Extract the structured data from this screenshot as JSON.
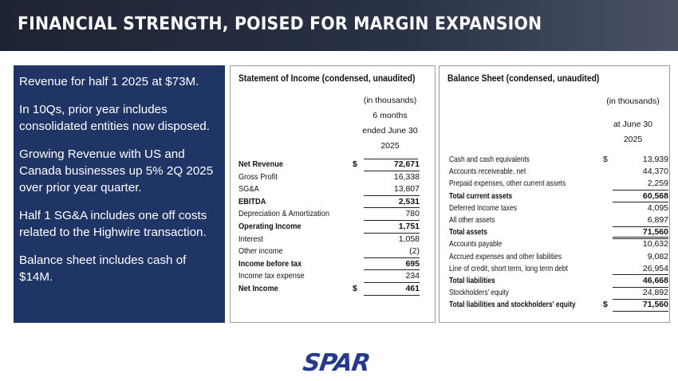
{
  "header": {
    "title": "FINANCIAL STRENGTH, POISED FOR MARGIN EXPANSION"
  },
  "left_panel": {
    "bullets": [
      "Revenue for half 1 2025 at $73M.",
      "In 10Qs, prior year includes consolidated entities now disposed.",
      "Growing Revenue with US and Canada businesses up 5% 2Q 2025 over prior year quarter.",
      "Half 1 SG&A includes one off costs related to the Highwire transaction.",
      "Balance sheet includes cash of $14M."
    ]
  },
  "income": {
    "title": "Statement of Income (condensed, unaudited)",
    "col_header": [
      "(in thousands)",
      "6 months",
      "ended June 30",
      "2025"
    ],
    "rows": [
      {
        "label": "Net Revenue",
        "cur": "$",
        "value": "72,671",
        "bold": true
      },
      {
        "label": "Gross Profit",
        "cur": "",
        "value": "16,338",
        "bold": false
      },
      {
        "label": "SG&A",
        "cur": "",
        "value": "13,807",
        "bold": false
      },
      {
        "label": "EBITDA",
        "cur": "",
        "value": "2,531",
        "bold": true
      },
      {
        "label": "Depreciation & Amortization",
        "cur": "",
        "value": "780",
        "bold": false
      },
      {
        "label": "Operating Income",
        "cur": "",
        "value": "1,751",
        "bold": true
      },
      {
        "label": "Interest",
        "cur": "",
        "value": "1,058",
        "bold": false
      },
      {
        "label": "Other income",
        "cur": "",
        "value": "(2)",
        "bold": false
      },
      {
        "label": "Income before tax",
        "cur": "",
        "value": "695",
        "bold": true
      },
      {
        "label": "Income tax expense",
        "cur": "",
        "value": "234",
        "bold": false
      },
      {
        "label": "Net Income",
        "cur": "$",
        "value": "461",
        "bold": true
      }
    ]
  },
  "balance": {
    "title": "Balance Sheet (condensed, unaudited)",
    "units": "(in thousands)",
    "col_header": [
      "at June 30",
      "2025"
    ],
    "rows": [
      {
        "label": "Cash and cash equivalents",
        "cur": "$",
        "value": "13,939",
        "bold": false
      },
      {
        "label": "Accounts receiveable, net",
        "cur": "",
        "value": "44,370",
        "bold": false
      },
      {
        "label": "Prepaid expenses, other current assets",
        "cur": "",
        "value": "2,259",
        "bold": false
      },
      {
        "label": "Total current assets",
        "cur": "",
        "value": "60,568",
        "bold": true
      },
      {
        "label": "Deferred Income taxes",
        "cur": "",
        "value": "4,095",
        "bold": false
      },
      {
        "label": "All other assets",
        "cur": "",
        "value": "6,897",
        "bold": false
      },
      {
        "label": "Total assets",
        "cur": "",
        "value": "71,560",
        "bold": true
      },
      {
        "label": "Accounts payable",
        "cur": "",
        "value": "10,632",
        "bold": false
      },
      {
        "label": "Accrued expenses and other liabilities",
        "cur": "",
        "value": "9,082",
        "bold": false
      },
      {
        "label": "Line of credit, short term, long term debt",
        "cur": "",
        "value": "26,954",
        "bold": false
      },
      {
        "label": "Total liabilities",
        "cur": "",
        "value": "46,668",
        "bold": true
      },
      {
        "label": "Stockholders' equity",
        "cur": "",
        "value": "24,892",
        "bold": false
      },
      {
        "label": "Total liabilities and stockholders' equity",
        "cur": "$",
        "value": "71,560",
        "bold": true
      }
    ]
  },
  "logo": {
    "text": "SPAR"
  }
}
